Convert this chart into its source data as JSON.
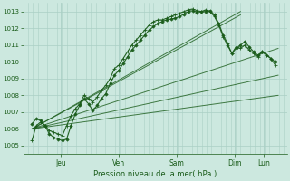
{
  "bg_color": "#cce8df",
  "plot_bg_color": "#cce8df",
  "grid_color_major": "#aacfc5",
  "grid_color_minor": "#bdddd5",
  "line_color": "#1a5c1a",
  "ylim": [
    1004.5,
    1013.5
  ],
  "yticks": [
    1005,
    1006,
    1007,
    1008,
    1009,
    1010,
    1011,
    1012,
    1013
  ],
  "xlabel": "Pression niveau de la mer( hPa )",
  "xlim": [
    -0.3,
    8.8
  ],
  "day_ticks": [
    1,
    3,
    5,
    7,
    8
  ],
  "day_labels": [
    "Jeu",
    "Ven",
    "Sam",
    "Dim",
    "Lun"
  ],
  "straight_lines": [
    {
      "x": [
        0,
        8.5
      ],
      "y": [
        1006.0,
        1009.2
      ]
    },
    {
      "x": [
        0,
        8.5
      ],
      "y": [
        1006.0,
        1010.8
      ]
    },
    {
      "x": [
        0,
        8.5
      ],
      "y": [
        1006.0,
        1008.0
      ]
    },
    {
      "x": [
        0,
        7.2
      ],
      "y": [
        1006.0,
        1013.0
      ]
    },
    {
      "x": [
        0,
        7.2
      ],
      "y": [
        1006.0,
        1012.8
      ]
    }
  ],
  "line1_x": [
    0.0,
    0.15,
    0.3,
    0.45,
    0.6,
    0.75,
    0.9,
    1.05,
    1.2,
    1.35,
    1.5,
    1.65,
    1.8,
    1.95,
    2.1,
    2.25,
    2.4,
    2.55,
    2.7,
    2.85,
    3.0,
    3.15,
    3.3,
    3.45,
    3.6,
    3.75,
    3.9,
    4.05,
    4.2,
    4.35,
    4.5,
    4.65,
    4.8,
    4.95,
    5.1,
    5.25,
    5.4,
    5.55,
    5.7,
    5.85,
    6.0,
    6.15,
    6.3,
    6.45,
    6.6,
    6.75,
    6.9,
    7.05,
    7.2,
    7.35,
    7.5,
    7.65,
    7.8,
    7.95,
    8.1,
    8.25,
    8.4
  ],
  "line1_y": [
    1005.3,
    1006.2,
    1006.4,
    1006.2,
    1005.9,
    1005.8,
    1005.7,
    1005.6,
    1006.2,
    1006.8,
    1007.2,
    1007.5,
    1008.0,
    1007.8,
    1007.6,
    1007.9,
    1008.3,
    1008.6,
    1009.0,
    1009.6,
    1009.8,
    1010.2,
    1010.6,
    1011.0,
    1011.3,
    1011.6,
    1011.9,
    1012.2,
    1012.4,
    1012.5,
    1012.5,
    1012.6,
    1012.7,
    1012.8,
    1012.9,
    1013.0,
    1013.1,
    1013.15,
    1013.05,
    1013.0,
    1013.1,
    1013.0,
    1012.7,
    1012.2,
    1011.5,
    1011.0,
    1010.5,
    1010.9,
    1010.8,
    1011.0,
    1010.7,
    1010.5,
    1010.3,
    1010.6,
    1010.4,
    1010.2,
    1009.8
  ],
  "line2_x": [
    0.0,
    0.15,
    0.3,
    0.45,
    0.6,
    0.75,
    0.9,
    1.05,
    1.2,
    1.35,
    1.5,
    1.65,
    1.8,
    1.95,
    2.1,
    2.25,
    2.4,
    2.55,
    2.7,
    2.85,
    3.0,
    3.15,
    3.3,
    3.45,
    3.6,
    3.75,
    3.9,
    4.05,
    4.2,
    4.35,
    4.5,
    4.65,
    4.8,
    4.95,
    5.1,
    5.25,
    5.4,
    5.55,
    5.7,
    5.85,
    6.0,
    6.15,
    6.3,
    6.45,
    6.6,
    6.75,
    6.9,
    7.05,
    7.2,
    7.35,
    7.5,
    7.65,
    7.8,
    7.95,
    8.1,
    8.25,
    8.4
  ],
  "line2_y": [
    1006.3,
    1006.6,
    1006.5,
    1006.2,
    1005.7,
    1005.5,
    1005.4,
    1005.3,
    1005.4,
    1006.2,
    1006.9,
    1007.4,
    1007.8,
    1007.5,
    1007.1,
    1007.4,
    1007.8,
    1008.1,
    1008.7,
    1009.2,
    1009.5,
    1009.9,
    1010.3,
    1010.7,
    1011.0,
    1011.3,
    1011.6,
    1011.9,
    1012.1,
    1012.3,
    1012.4,
    1012.5,
    1012.55,
    1012.6,
    1012.7,
    1012.85,
    1013.0,
    1013.05,
    1012.95,
    1013.0,
    1013.0,
    1013.05,
    1012.8,
    1012.3,
    1011.6,
    1011.1,
    1010.5,
    1010.8,
    1011.0,
    1011.2,
    1010.9,
    1010.6,
    1010.4,
    1010.6,
    1010.4,
    1010.2,
    1010.0
  ]
}
